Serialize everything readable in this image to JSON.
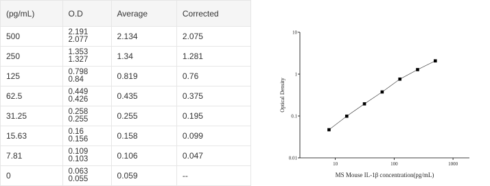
{
  "table": {
    "header": [
      "(pg/mL)",
      "O.D",
      "Average",
      "Corrected"
    ],
    "rows": [
      [
        "500",
        [
          "2.191",
          "2.077"
        ],
        "2.134",
        "2.075"
      ],
      [
        "250",
        [
          "1.353",
          "1.327"
        ],
        "1.34",
        "1.281"
      ],
      [
        "125",
        [
          "0.798",
          "0.84"
        ],
        "0.819",
        "0.76"
      ],
      [
        "62.5",
        [
          "0.449",
          "0.426"
        ],
        "0.435",
        "0.375"
      ],
      [
        "31.25",
        [
          "0.258",
          "0.255"
        ],
        "0.255",
        "0.195"
      ],
      [
        "15.63",
        [
          "0.16",
          "0.156"
        ],
        "0.158",
        "0.099"
      ],
      [
        "7.81",
        [
          "0.109",
          "0.103"
        ],
        "0.106",
        "0.047"
      ],
      [
        "0",
        [
          "0.063",
          "0.055"
        ],
        "0.059",
        "--"
      ]
    ]
  },
  "chart_data": {
    "type": "scatter",
    "x_label": "MS Mouse IL-1β concentration(pg/mL)",
    "y_label": "Optical Density",
    "log_x": true,
    "log_y": true,
    "color": "#000000",
    "x": [
      7.81,
      15.63,
      31.25,
      62.5,
      125,
      250,
      500
    ],
    "values": [
      0.047,
      0.099,
      0.195,
      0.375,
      0.76,
      1.281,
      2.075
    ],
    "xlim": [
      2.5,
      1900
    ],
    "ylim": [
      0.01,
      10
    ],
    "xticks": [
      10,
      100,
      1000
    ],
    "yticks": [
      0.01,
      0.1,
      1,
      10
    ]
  }
}
